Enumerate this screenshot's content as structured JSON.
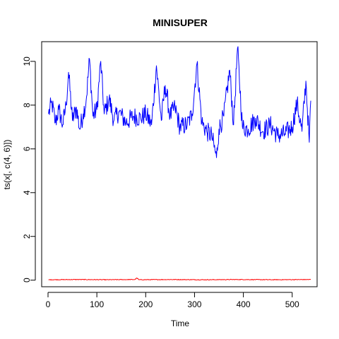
{
  "chart_data": {
    "type": "line",
    "title": "MINISUPER",
    "xlabel": "Time",
    "ylabel": "ts(x[, c(4, 6)])",
    "xlim": [
      -13,
      551
    ],
    "ylim": [
      -0.3,
      10.9
    ],
    "x_ticks": [
      0,
      100,
      200,
      300,
      400,
      500
    ],
    "y_ticks": [
      0,
      2,
      4,
      6,
      8,
      10
    ],
    "grid": false,
    "legend": "none",
    "x_range": [
      1,
      538
    ],
    "series": [
      {
        "color": "#0000ff",
        "anchors": [
          [
            1,
            7.6
          ],
          [
            8,
            8.1
          ],
          [
            15,
            7.2
          ],
          [
            22,
            7.8
          ],
          [
            30,
            7.1
          ],
          [
            37,
            8.0
          ],
          [
            42,
            9.5
          ],
          [
            50,
            7.3
          ],
          [
            58,
            7.9
          ],
          [
            65,
            6.9
          ],
          [
            72,
            7.6
          ],
          [
            78,
            8.2
          ],
          [
            85,
            10.1
          ],
          [
            92,
            7.5
          ],
          [
            100,
            7.8
          ],
          [
            108,
            10.0
          ],
          [
            115,
            7.6
          ],
          [
            125,
            8.3
          ],
          [
            135,
            7.3
          ],
          [
            145,
            7.7
          ],
          [
            160,
            7.2
          ],
          [
            175,
            7.5
          ],
          [
            190,
            7.4
          ],
          [
            200,
            7.6
          ],
          [
            212,
            7.1
          ],
          [
            222,
            9.8
          ],
          [
            232,
            7.3
          ],
          [
            240,
            8.9
          ],
          [
            250,
            7.5
          ],
          [
            260,
            7.9
          ],
          [
            270,
            7.0
          ],
          [
            285,
            7.1
          ],
          [
            295,
            7.6
          ],
          [
            305,
            9.9
          ],
          [
            315,
            7.2
          ],
          [
            325,
            6.8
          ],
          [
            335,
            6.6
          ],
          [
            345,
            5.6
          ],
          [
            350,
            6.9
          ],
          [
            360,
            7.5
          ],
          [
            372,
            9.6
          ],
          [
            380,
            7.1
          ],
          [
            388,
            10.6
          ],
          [
            398,
            7.0
          ],
          [
            410,
            6.9
          ],
          [
            425,
            7.4
          ],
          [
            440,
            6.8
          ],
          [
            455,
            7.1
          ],
          [
            470,
            6.6
          ],
          [
            485,
            6.7
          ],
          [
            500,
            7.0
          ],
          [
            510,
            8.1
          ],
          [
            520,
            6.8
          ],
          [
            528,
            9.1
          ],
          [
            535,
            6.3
          ],
          [
            538,
            8.2
          ]
        ]
      },
      {
        "color": "#ff0000",
        "anchors": [
          [
            1,
            0.02
          ],
          [
            60,
            0.03
          ],
          [
            120,
            0.02
          ],
          [
            178,
            0.03
          ],
          [
            182,
            0.1
          ],
          [
            186,
            0.02
          ],
          [
            250,
            0.03
          ],
          [
            320,
            0.02
          ],
          [
            390,
            0.03
          ],
          [
            460,
            0.02
          ],
          [
            538,
            0.03
          ]
        ]
      }
    ]
  }
}
